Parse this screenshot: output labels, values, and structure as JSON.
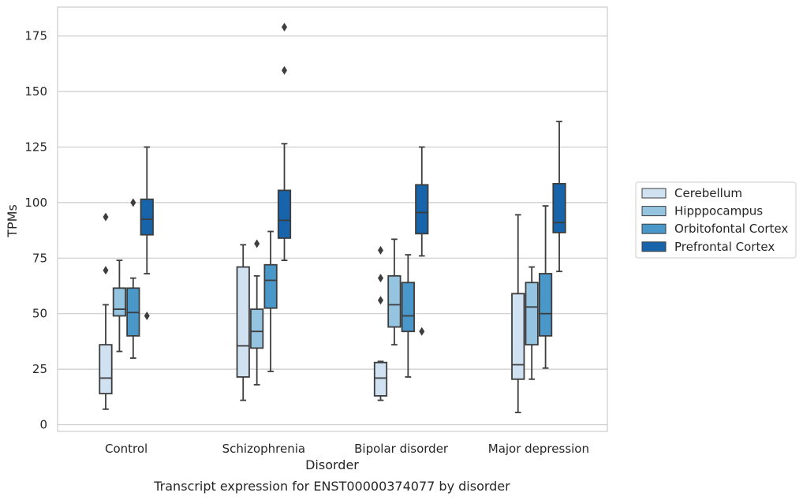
{
  "chart_data": {
    "type": "box",
    "title": "",
    "caption": "Transcript expression for ENST00000374077 by disorder",
    "xlabel": "Disorder",
    "ylabel": "TPMs",
    "ylim": [
      -3,
      188
    ],
    "yticks": [
      0,
      25,
      50,
      75,
      100,
      125,
      150,
      175
    ],
    "grid": "horizontal",
    "legend_position": "right",
    "categories": [
      "Control",
      "Schizophrenia",
      "Bipolar disorder",
      "Major depression"
    ],
    "series": [
      {
        "name": "Cerebellum",
        "color": "#d0e1f2",
        "boxes": [
          {
            "min": 7,
            "q1": 14,
            "median": 21,
            "q3": 36,
            "max": 54,
            "outliers": [
              69.5,
              93.5
            ]
          },
          {
            "min": 11,
            "q1": 21.5,
            "median": 35.5,
            "q3": 71,
            "max": 81,
            "outliers": []
          },
          {
            "min": 11,
            "q1": 13,
            "median": 21,
            "q3": 28,
            "max": 28.5,
            "outliers": [
              56,
              66,
              78.5
            ]
          },
          {
            "min": 5.5,
            "q1": 20.5,
            "median": 27,
            "q3": 59,
            "max": 94.5,
            "outliers": []
          }
        ]
      },
      {
        "name": "Hipppocampus",
        "color": "#94c4df",
        "boxes": [
          {
            "min": 33,
            "q1": 49,
            "median": 52,
            "q3": 61.5,
            "max": 74,
            "outliers": []
          },
          {
            "min": 18,
            "q1": 34.5,
            "median": 42,
            "q3": 52,
            "max": 67,
            "outliers": [
              81.5
            ]
          },
          {
            "min": 36,
            "q1": 44,
            "median": 54,
            "q3": 67,
            "max": 83.5,
            "outliers": []
          },
          {
            "min": 20.5,
            "q1": 36,
            "median": 53,
            "q3": 64,
            "max": 71,
            "outliers": []
          }
        ]
      },
      {
        "name": "Orbitofontal Cortex",
        "color": "#4a98c9",
        "boxes": [
          {
            "min": 30,
            "q1": 40,
            "median": 50.5,
            "q3": 61.5,
            "max": 66,
            "outliers": [
              100
            ]
          },
          {
            "min": 24,
            "q1": 52.5,
            "median": 65,
            "q3": 72,
            "max": 87,
            "outliers": []
          },
          {
            "min": 21.5,
            "q1": 42,
            "median": 49,
            "q3": 64,
            "max": 76.5,
            "outliers": []
          },
          {
            "min": 25.5,
            "q1": 40,
            "median": 50,
            "q3": 68,
            "max": 98.5,
            "outliers": []
          }
        ]
      },
      {
        "name": "Prefrontal Cortex",
        "color": "#1764ab",
        "boxes": [
          {
            "min": 68,
            "q1": 85.5,
            "median": 92.5,
            "q3": 101.5,
            "max": 125,
            "outliers": [
              49
            ]
          },
          {
            "min": 74,
            "q1": 84,
            "median": 92,
            "q3": 105.5,
            "max": 126.5,
            "outliers": [
              159.5,
              179
            ]
          },
          {
            "min": 76,
            "q1": 86,
            "median": 95.5,
            "q3": 108,
            "max": 125,
            "outliers": [
              42
            ]
          },
          {
            "min": 69,
            "q1": 86.5,
            "median": 91,
            "q3": 108.5,
            "max": 136.5,
            "outliers": []
          }
        ]
      }
    ]
  }
}
